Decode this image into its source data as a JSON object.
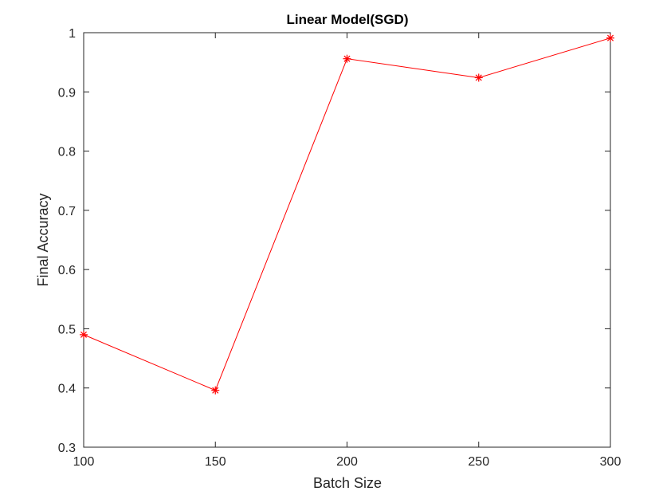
{
  "chart_data": {
    "type": "line",
    "title": "Linear Model(SGD)",
    "xlabel": "Batch Size",
    "ylabel": "Final Accuracy",
    "xlim": [
      100,
      300
    ],
    "ylim": [
      0.3,
      1
    ],
    "xticks": [
      100,
      150,
      200,
      250,
      300
    ],
    "xtick_labels": [
      "100",
      "150",
      "200",
      "250",
      "300"
    ],
    "yticks": [
      0.3,
      0.4,
      0.5,
      0.6,
      0.7,
      0.8,
      0.9,
      1
    ],
    "ytick_labels": [
      "0.3",
      "0.4",
      "0.5",
      "0.6",
      "0.7",
      "0.8",
      "0.9",
      "1"
    ],
    "grid": false,
    "legend": "none",
    "series": [
      {
        "x": [
          100,
          150,
          200,
          250,
          300
        ],
        "values": [
          0.49,
          0.396,
          0.956,
          0.924,
          0.991
        ],
        "color": "#ff0000",
        "marker": "asterisk"
      }
    ]
  }
}
